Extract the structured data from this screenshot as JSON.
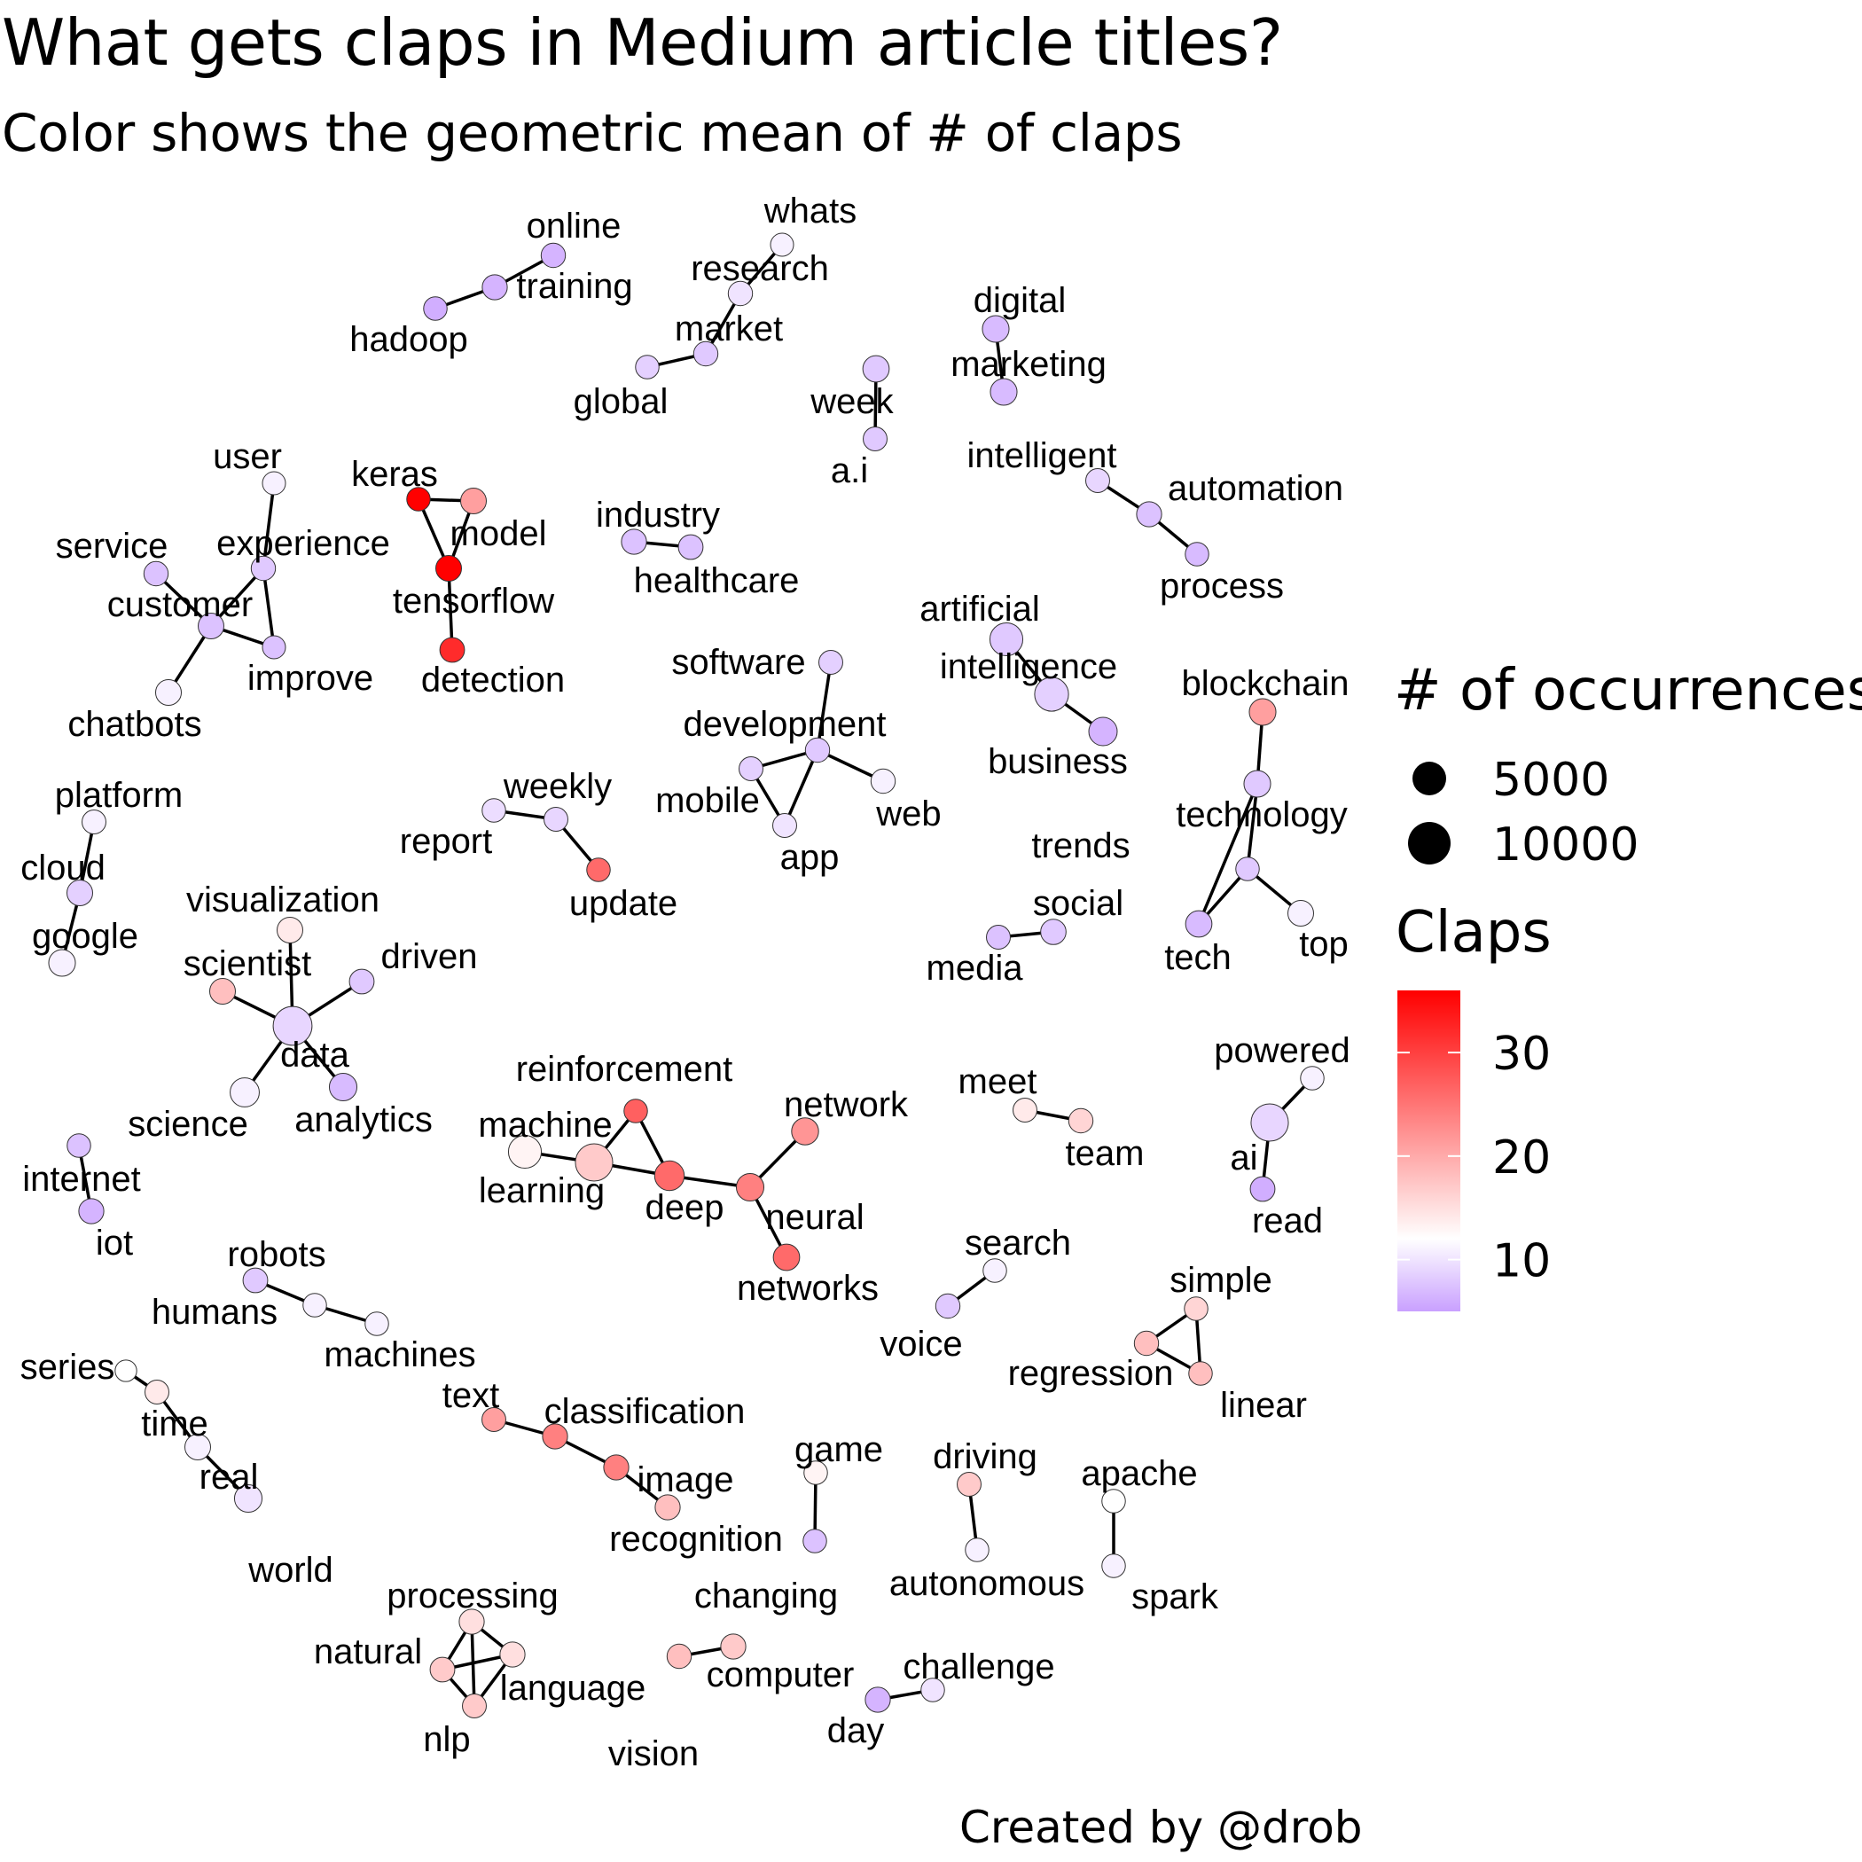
{
  "title": "What gets claps in Medium article titles?",
  "subtitle": "Color shows the geometric mean of # of claps",
  "caption": "Created by @drob",
  "legend": {
    "size_title": "# of occurrences",
    "size_entries": [
      {
        "label": "5000",
        "value": 5000
      },
      {
        "label": "10000",
        "value": 10000
      }
    ],
    "color_title": "Claps",
    "color_ticks": [
      {
        "label": "30",
        "value": 30
      },
      {
        "label": "20",
        "value": 20
      },
      {
        "label": "10",
        "value": 10
      }
    ],
    "color_scale": {
      "low": "#c9a0ff",
      "mid": "#ffffff",
      "high": "#ff0000",
      "min": 5,
      "midpoint": 12,
      "max": 36
    }
  },
  "chart_data": {
    "type": "network",
    "title": "What gets claps in Medium article titles?",
    "subtitle": "Color shows the geometric mean of # of claps",
    "nodes": [
      {
        "word": "online",
        "occurrences": 1200,
        "claps": 6.5
      },
      {
        "word": "training",
        "occurrences": 1400,
        "claps": 6.5
      },
      {
        "word": "hadoop",
        "occurrences": 1000,
        "claps": 6
      },
      {
        "word": "whats",
        "occurrences": 900,
        "claps": 11
      },
      {
        "word": "research",
        "occurrences": 1200,
        "claps": 10
      },
      {
        "word": "market",
        "occurrences": 1200,
        "claps": 8
      },
      {
        "word": "global",
        "occurrences": 1000,
        "claps": 8.5
      },
      {
        "word": "digital",
        "occurrences": 1900,
        "claps": 7
      },
      {
        "word": "marketing",
        "occurrences": 1900,
        "claps": 7
      },
      {
        "word": "week",
        "occurrences": 1800,
        "claps": 8
      },
      {
        "word": "a.i",
        "occurrences": 1100,
        "claps": 8
      },
      {
        "word": "intelligent",
        "occurrences": 1100,
        "claps": 9
      },
      {
        "word": "automation",
        "occurrences": 1400,
        "claps": 7.5
      },
      {
        "word": "process",
        "occurrences": 1000,
        "claps": 7
      },
      {
        "word": "user",
        "occurrences": 900,
        "claps": 11
      },
      {
        "word": "experience",
        "occurrences": 1200,
        "claps": 8
      },
      {
        "word": "service",
        "occurrences": 1200,
        "claps": 7.5
      },
      {
        "word": "customer",
        "occurrences": 1600,
        "claps": 7.5
      },
      {
        "word": "improve",
        "occurrences": 900,
        "claps": 7.5
      },
      {
        "word": "chatbots",
        "occurrences": 1600,
        "claps": 11
      },
      {
        "word": "keras",
        "occurrences": 1000,
        "claps": 36
      },
      {
        "word": "model",
        "occurrences": 1600,
        "claps": 21
      },
      {
        "word": "tensorflow",
        "occurrences": 1600,
        "claps": 36
      },
      {
        "word": "detection",
        "occurrences": 1300,
        "claps": 32
      },
      {
        "word": "industry",
        "occurrences": 1400,
        "claps": 7.5
      },
      {
        "word": "healthcare",
        "occurrences": 1300,
        "claps": 7.5
      },
      {
        "word": "software",
        "occurrences": 1100,
        "claps": 8.5
      },
      {
        "word": "development",
        "occurrences": 1200,
        "claps": 8
      },
      {
        "word": "mobile",
        "occurrences": 1100,
        "claps": 8.5
      },
      {
        "word": "app",
        "occurrences": 1100,
        "claps": 10
      },
      {
        "word": "web",
        "occurrences": 1200,
        "claps": 11
      },
      {
        "word": "artificial",
        "occurrences": 4500,
        "claps": 8
      },
      {
        "word": "intelligence",
        "occurrences": 5000,
        "claps": 8.5
      },
      {
        "word": "business",
        "occurrences": 2500,
        "claps": 6.5
      },
      {
        "word": "blockchain",
        "occurrences": 1900,
        "claps": 21
      },
      {
        "word": "technology",
        "occurrences": 1900,
        "claps": 8
      },
      {
        "word": "trends",
        "occurrences": 1000,
        "claps": 8
      },
      {
        "word": "tech",
        "occurrences": 1800,
        "claps": 7
      },
      {
        "word": "top",
        "occurrences": 1600,
        "claps": 11
      },
      {
        "word": "social",
        "occurrences": 1500,
        "claps": 8
      },
      {
        "word": "media",
        "occurrences": 1100,
        "claps": 7.5
      },
      {
        "word": "platform",
        "occurrences": 1100,
        "claps": 11
      },
      {
        "word": "cloud",
        "occurrences": 1600,
        "claps": 8.5
      },
      {
        "word": "google",
        "occurrences": 1900,
        "claps": 11
      },
      {
        "word": "weekly",
        "occurrences": 1100,
        "claps": 9
      },
      {
        "word": "report",
        "occurrences": 1000,
        "claps": 9.5
      },
      {
        "word": "update",
        "occurrences": 1000,
        "claps": 26
      },
      {
        "word": "visualization",
        "occurrences": 1600,
        "claps": 14
      },
      {
        "word": "scientist",
        "occurrences": 1600,
        "claps": 18
      },
      {
        "word": "driven",
        "occurrences": 1300,
        "claps": 8
      },
      {
        "word": "data",
        "occurrences": 8000,
        "claps": 9
      },
      {
        "word": "science",
        "occurrences": 2800,
        "claps": 11
      },
      {
        "word": "analytics",
        "occurrences": 2200,
        "claps": 7
      },
      {
        "word": "internet",
        "occurrences": 1000,
        "claps": 7.5
      },
      {
        "word": "iot",
        "occurrences": 1400,
        "claps": 6.5
      },
      {
        "word": "reinforcement",
        "occurrences": 1000,
        "claps": 27
      },
      {
        "word": "machine",
        "occurrences": 4500,
        "claps": 13
      },
      {
        "word": "learning",
        "occurrences": 7000,
        "claps": 17
      },
      {
        "word": "deep",
        "occurrences": 3000,
        "claps": 26
      },
      {
        "word": "neural",
        "occurrences": 2200,
        "claps": 24
      },
      {
        "word": "network",
        "occurrences": 2000,
        "claps": 22
      },
      {
        "word": "networks",
        "occurrences": 1800,
        "claps": 26
      },
      {
        "word": "meet",
        "occurrences": 1100,
        "claps": 14
      },
      {
        "word": "team",
        "occurrences": 1200,
        "claps": 16
      },
      {
        "word": "powered",
        "occurrences": 1000,
        "claps": 11
      },
      {
        "word": "ai",
        "occurrences": 7000,
        "claps": 9
      },
      {
        "word": "read",
        "occurrences": 1300,
        "claps": 6
      },
      {
        "word": "search",
        "occurrences": 1000,
        "claps": 11
      },
      {
        "word": "voice",
        "occurrences": 1200,
        "claps": 8
      },
      {
        "word": "robots",
        "occurrences": 1300,
        "claps": 8
      },
      {
        "word": "humans",
        "occurrences": 1000,
        "claps": 11
      },
      {
        "word": "machines",
        "occurrences": 1000,
        "claps": 11
      },
      {
        "word": "simple",
        "occurrences": 1000,
        "claps": 16
      },
      {
        "word": "regression",
        "occurrences": 1200,
        "claps": 18
      },
      {
        "word": "linear",
        "occurrences": 1000,
        "claps": 18
      },
      {
        "word": "series",
        "occurrences": 600,
        "claps": 12
      },
      {
        "word": "time",
        "occurrences": 1100,
        "claps": 14
      },
      {
        "word": "real",
        "occurrences": 1600,
        "claps": 11
      },
      {
        "word": "world",
        "occurrences": 2200,
        "claps": 10
      },
      {
        "word": "text",
        "occurrences": 1100,
        "claps": 21
      },
      {
        "word": "classification",
        "occurrences": 1400,
        "claps": 24
      },
      {
        "word": "image",
        "occurrences": 1400,
        "claps": 24
      },
      {
        "word": "recognition",
        "occurrences": 1400,
        "claps": 18
      },
      {
        "word": "game",
        "occurrences": 1000,
        "claps": 13
      },
      {
        "word": "changing",
        "occurrences": 1000,
        "claps": 7.5
      },
      {
        "word": "driving",
        "occurrences": 1100,
        "claps": 17
      },
      {
        "word": "autonomous",
        "occurrences": 1000,
        "claps": 11
      },
      {
        "word": "apache",
        "occurrences": 1000,
        "claps": 12
      },
      {
        "word": "spark",
        "occurrences": 1000,
        "claps": 11
      },
      {
        "word": "processing",
        "occurrences": 1400,
        "claps": 15
      },
      {
        "word": "natural",
        "occurrences": 1300,
        "claps": 17
      },
      {
        "word": "language",
        "occurrences": 1400,
        "claps": 15
      },
      {
        "word": "nlp",
        "occurrences": 1100,
        "claps": 17
      },
      {
        "word": "computer",
        "occurrences": 1400,
        "claps": 17
      },
      {
        "word": "vision",
        "occurrences": 1200,
        "claps": 18
      },
      {
        "word": "day",
        "occurrences": 1400,
        "claps": 6.5
      },
      {
        "word": "challenge",
        "occurrences": 1000,
        "claps": 10
      }
    ],
    "edges": [
      [
        "online",
        "training"
      ],
      [
        "training",
        "hadoop"
      ],
      [
        "whats",
        "research"
      ],
      [
        "research",
        "market"
      ],
      [
        "market",
        "global"
      ],
      [
        "digital",
        "marketing"
      ],
      [
        "week",
        "a.i"
      ],
      [
        "intelligent",
        "automation"
      ],
      [
        "automation",
        "process"
      ],
      [
        "user",
        "experience"
      ],
      [
        "experience",
        "customer"
      ],
      [
        "experience",
        "improve"
      ],
      [
        "service",
        "customer"
      ],
      [
        "customer",
        "improve"
      ],
      [
        "customer",
        "chatbots"
      ],
      [
        "keras",
        "model"
      ],
      [
        "keras",
        "tensorflow"
      ],
      [
        "model",
        "tensorflow"
      ],
      [
        "tensorflow",
        "detection"
      ],
      [
        "industry",
        "healthcare"
      ],
      [
        "software",
        "development"
      ],
      [
        "development",
        "mobile"
      ],
      [
        "development",
        "app"
      ],
      [
        "development",
        "web"
      ],
      [
        "mobile",
        "app"
      ],
      [
        "artificial",
        "intelligence"
      ],
      [
        "intelligence",
        "business"
      ],
      [
        "blockchain",
        "technology"
      ],
      [
        "technology",
        "trends"
      ],
      [
        "trends",
        "tech"
      ],
      [
        "trends",
        "top"
      ],
      [
        "technology",
        "tech"
      ],
      [
        "social",
        "media"
      ],
      [
        "platform",
        "cloud"
      ],
      [
        "cloud",
        "google"
      ],
      [
        "weekly",
        "report"
      ],
      [
        "weekly",
        "update"
      ],
      [
        "visualization",
        "data"
      ],
      [
        "scientist",
        "data"
      ],
      [
        "driven",
        "data"
      ],
      [
        "data",
        "science"
      ],
      [
        "data",
        "analytics"
      ],
      [
        "internet",
        "iot"
      ],
      [
        "reinforcement",
        "learning"
      ],
      [
        "reinforcement",
        "deep"
      ],
      [
        "machine",
        "learning"
      ],
      [
        "learning",
        "deep"
      ],
      [
        "deep",
        "neural"
      ],
      [
        "neural",
        "network"
      ],
      [
        "neural",
        "networks"
      ],
      [
        "meet",
        "team"
      ],
      [
        "powered",
        "ai"
      ],
      [
        "ai",
        "read"
      ],
      [
        "search",
        "voice"
      ],
      [
        "robots",
        "humans"
      ],
      [
        "humans",
        "machines"
      ],
      [
        "simple",
        "regression"
      ],
      [
        "simple",
        "linear"
      ],
      [
        "regression",
        "linear"
      ],
      [
        "series",
        "time"
      ],
      [
        "time",
        "real"
      ],
      [
        "real",
        "world"
      ],
      [
        "text",
        "classification"
      ],
      [
        "classification",
        "image"
      ],
      [
        "image",
        "recognition"
      ],
      [
        "game",
        "changing"
      ],
      [
        "driving",
        "autonomous"
      ],
      [
        "apache",
        "spark"
      ],
      [
        "processing",
        "natural"
      ],
      [
        "processing",
        "language"
      ],
      [
        "processing",
        "nlp"
      ],
      [
        "natural",
        "language"
      ],
      [
        "natural",
        "nlp"
      ],
      [
        "language",
        "nlp"
      ],
      [
        "computer",
        "vision"
      ],
      [
        "day",
        "challenge"
      ]
    ]
  }
}
